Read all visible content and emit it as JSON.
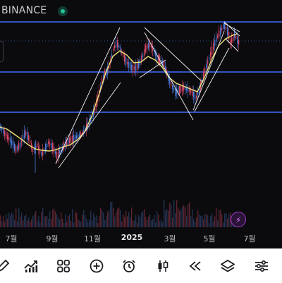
{
  "header": {
    "exchange": "BINANCE",
    "status_color": "#22c39a"
  },
  "x_axis": {
    "labels": [
      "7월",
      "9월",
      "11월",
      "2025",
      "3월",
      "5월",
      "7월"
    ],
    "bold_label": "2025"
  },
  "colors": {
    "up": "#e0496a",
    "down": "#4a7bdc",
    "ma": "#f2e27a",
    "hline": "#3f6cff",
    "trendline": "#f1f1f1",
    "volume": "#3a3a3a",
    "bg": "#0b0b0d",
    "accent": "#a23bd4"
  },
  "price_path": [
    [
      0,
      180
    ],
    [
      8,
      192
    ],
    [
      15,
      200
    ],
    [
      22,
      212
    ],
    [
      28,
      205
    ],
    [
      35,
      188
    ],
    [
      40,
      195
    ],
    [
      46,
      213
    ],
    [
      52,
      206
    ],
    [
      58,
      218
    ],
    [
      63,
      212
    ],
    [
      68,
      202
    ],
    [
      74,
      209
    ],
    [
      80,
      220
    ],
    [
      86,
      213
    ],
    [
      92,
      204
    ],
    [
      98,
      199
    ],
    [
      104,
      196
    ],
    [
      110,
      193
    ],
    [
      116,
      189
    ],
    [
      122,
      180
    ],
    [
      127,
      171
    ],
    [
      132,
      160
    ],
    [
      138,
      140
    ],
    [
      143,
      120
    ],
    [
      148,
      105
    ],
    [
      152,
      100
    ],
    [
      156,
      88
    ],
    [
      160,
      70
    ],
    [
      165,
      60
    ],
    [
      170,
      70
    ],
    [
      174,
      78
    ],
    [
      178,
      87
    ],
    [
      183,
      93
    ],
    [
      188,
      97
    ],
    [
      193,
      96
    ],
    [
      198,
      88
    ],
    [
      203,
      77
    ],
    [
      207,
      66
    ],
    [
      212,
      64
    ],
    [
      217,
      70
    ],
    [
      222,
      82
    ],
    [
      228,
      87
    ],
    [
      233,
      93
    ],
    [
      238,
      110
    ],
    [
      243,
      122
    ],
    [
      248,
      130
    ],
    [
      253,
      128
    ],
    [
      258,
      125
    ],
    [
      263,
      125
    ],
    [
      268,
      128
    ],
    [
      273,
      132
    ],
    [
      277,
      140
    ],
    [
      281,
      130
    ],
    [
      285,
      118
    ],
    [
      289,
      103
    ],
    [
      293,
      91
    ],
    [
      297,
      80
    ],
    [
      301,
      69
    ],
    [
      305,
      58
    ],
    [
      309,
      49
    ],
    [
      313,
      43
    ],
    [
      317,
      35
    ],
    [
      320,
      40
    ],
    [
      323,
      46
    ],
    [
      326,
      60
    ],
    [
      329,
      56
    ],
    [
      332,
      48
    ],
    [
      335,
      55
    ],
    [
      338,
      60
    ]
  ],
  "ma_path": [
    [
      0,
      180
    ],
    [
      10,
      183
    ],
    [
      20,
      190
    ],
    [
      30,
      197
    ],
    [
      40,
      205
    ],
    [
      50,
      211
    ],
    [
      60,
      213
    ],
    [
      70,
      214
    ],
    [
      80,
      212
    ],
    [
      90,
      208
    ],
    [
      100,
      205
    ],
    [
      110,
      198
    ],
    [
      120,
      187
    ],
    [
      130,
      165
    ],
    [
      140,
      135
    ],
    [
      150,
      103
    ],
    [
      160,
      80
    ],
    [
      170,
      72
    ],
    [
      180,
      78
    ],
    [
      190,
      89
    ],
    [
      200,
      88
    ],
    [
      210,
      80
    ],
    [
      220,
      85
    ],
    [
      230,
      95
    ],
    [
      240,
      110
    ],
    [
      250,
      118
    ],
    [
      260,
      122
    ],
    [
      270,
      126
    ],
    [
      280,
      130
    ],
    [
      290,
      110
    ],
    [
      300,
      85
    ],
    [
      310,
      65
    ],
    [
      320,
      55
    ],
    [
      330,
      50
    ],
    [
      336,
      48
    ]
  ],
  "horizontal_levels": [
    31,
    102,
    159
  ],
  "dotted_level": 58,
  "trendlines": [
    [
      [
        79,
        232
      ],
      [
        170,
        39
      ]
    ],
    [
      [
        83,
        238
      ],
      [
        171,
        117
      ]
    ],
    [
      [
        205,
        39
      ],
      [
        288,
        117
      ]
    ],
    [
      [
        205,
        46
      ],
      [
        274,
        170
      ]
    ],
    [
      [
        198,
        110
      ],
      [
        235,
        85
      ]
    ],
    [
      [
        274,
        156
      ],
      [
        318,
        44
      ]
    ],
    [
      [
        318,
        33
      ],
      [
        340,
        45
      ]
    ],
    [
      [
        318,
        31
      ],
      [
        340,
        51
      ]
    ],
    [
      [
        320,
        55
      ],
      [
        338,
        73
      ]
    ],
    [
      [
        276,
        158
      ],
      [
        325,
        68
      ]
    ]
  ],
  "toolbar": [
    {
      "name": "drawing-pencil-icon"
    },
    {
      "name": "indicators-icon"
    },
    {
      "name": "layouts-grid-icon"
    },
    {
      "name": "add-plus-icon"
    },
    {
      "name": "alarm-clock-icon"
    },
    {
      "name": "candlestick-icon"
    },
    {
      "name": "rewind-icon"
    },
    {
      "name": "layers-icon"
    },
    {
      "name": "settings-sliders-icon"
    }
  ]
}
